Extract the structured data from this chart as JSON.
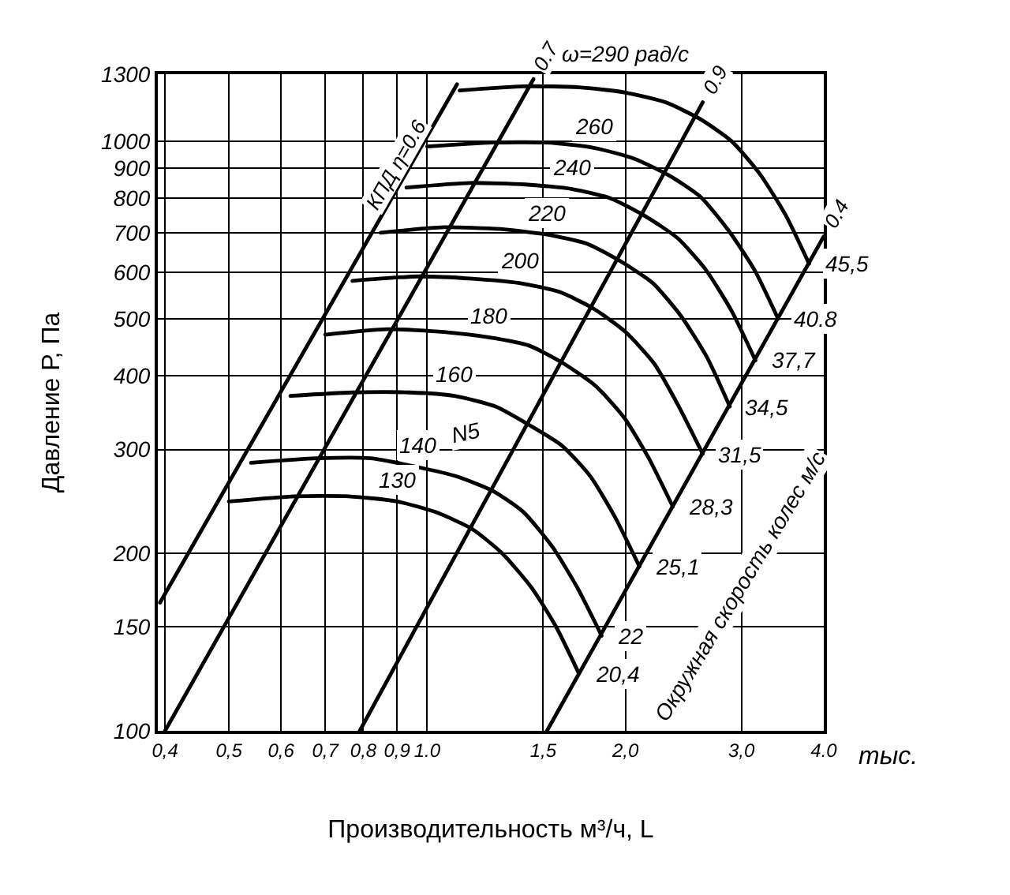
{
  "chart_data": {
    "type": "line",
    "xlabel": "Производительность м³/ч, L",
    "ylabel": "Давление Р, Па",
    "log": "xy",
    "xlim": [
      0.39,
      4.0
    ],
    "ylim": [
      100,
      1300
    ],
    "xticks": [
      {
        "value": 0.4,
        "label": "0,4"
      },
      {
        "value": 0.5,
        "label": "0,5"
      },
      {
        "value": 0.6,
        "label": "0,6"
      },
      {
        "value": 0.7,
        "label": "0,7"
      },
      {
        "value": 0.8,
        "label": "0,8"
      },
      {
        "value": 0.9,
        "label": "0,9"
      },
      {
        "value": 1.0,
        "label": "1.0"
      },
      {
        "value": 1.5,
        "label": "1,5"
      },
      {
        "value": 2.0,
        "label": "2,0"
      },
      {
        "value": 3.0,
        "label": "3,0"
      },
      {
        "value": 4.0,
        "label": "4.0"
      }
    ],
    "yticks": [
      100,
      150,
      200,
      300,
      400,
      500,
      600,
      700,
      800,
      900,
      1000,
      1300
    ],
    "grid": true,
    "legend": false,
    "marker": "none",
    "line_style": "solid",
    "series": [
      {
        "name": "КПД η=0.6",
        "color": "#000000",
        "x": [
          0.393,
          1.11
        ],
        "values": [
          165,
          1250
        ]
      },
      {
        "name": "0.7",
        "color": "#000000",
        "x": [
          0.4,
          1.45
        ],
        "values": [
          100,
          1275
        ]
      },
      {
        "name": "0.9",
        "color": "#000000",
        "x": [
          0.79,
          2.62
        ],
        "values": [
          100,
          1165
        ]
      },
      {
        "name": "0.4",
        "color": "#000000",
        "x": [
          1.52,
          4.0
        ],
        "values": [
          100,
          690
        ]
      },
      {
        "name": "ω=290 рад/с",
        "color": "#000000",
        "x": [
          1.12,
          1.4,
          1.7,
          2.0,
          2.3,
          2.6,
          2.9,
          3.2,
          3.5,
          3.8
        ],
        "values": [
          1220,
          1240,
          1235,
          1210,
          1165,
          1090,
          1000,
          880,
          750,
          620
        ]
      },
      {
        "name": "260",
        "color": "#000000",
        "x": [
          1.0,
          1.25,
          1.52,
          1.79,
          2.06,
          2.33,
          2.6,
          2.87,
          3.14,
          3.41
        ],
        "values": [
          980,
          995,
          995,
          975,
          935,
          875,
          805,
          705,
          605,
          500
        ]
      },
      {
        "name": "240",
        "color": "#000000",
        "x": [
          0.93,
          1.16,
          1.41,
          1.66,
          1.9,
          2.15,
          2.4,
          2.65,
          2.9,
          3.15
        ],
        "values": [
          835,
          850,
          845,
          830,
          800,
          745,
          685,
          605,
          515,
          425
        ]
      },
      {
        "name": "220",
        "color": "#000000",
        "x": [
          0.85,
          1.06,
          1.29,
          1.52,
          1.75,
          1.97,
          2.2,
          2.43,
          2.66,
          2.88
        ],
        "values": [
          700,
          715,
          710,
          695,
          670,
          625,
          575,
          505,
          430,
          355
        ]
      },
      {
        "name": "200",
        "color": "#000000",
        "x": [
          0.77,
          0.97,
          1.17,
          1.38,
          1.59,
          1.79,
          2.0,
          2.21,
          2.41,
          2.62
        ],
        "values": [
          580,
          590,
          585,
          575,
          555,
          520,
          475,
          420,
          355,
          295
        ]
      },
      {
        "name": "180",
        "color": "#000000",
        "x": [
          0.7,
          0.87,
          1.06,
          1.24,
          1.43,
          1.61,
          1.8,
          1.99,
          2.17,
          2.36
        ],
        "values": [
          470,
          480,
          475,
          465,
          450,
          420,
          385,
          340,
          290,
          240
        ]
      },
      {
        "name": "160",
        "color": "#000000",
        "x": [
          0.62,
          0.77,
          0.94,
          1.1,
          1.27,
          1.43,
          1.6,
          1.77,
          1.93,
          2.1
        ],
        "values": [
          370,
          375,
          375,
          370,
          355,
          330,
          305,
          270,
          230,
          190
        ]
      },
      {
        "name": "140",
        "color": "#000000",
        "x": [
          0.54,
          0.68,
          0.82,
          0.97,
          1.11,
          1.26,
          1.4,
          1.55,
          1.69,
          1.84
        ],
        "values": [
          285,
          290,
          290,
          280,
          270,
          255,
          235,
          205,
          175,
          145
        ]
      },
      {
        "name": "130",
        "color": "#000000",
        "x": [
          0.5,
          0.63,
          0.76,
          0.9,
          1.03,
          1.17,
          1.3,
          1.44,
          1.57,
          1.7
        ],
        "values": [
          245,
          250,
          250,
          245,
          235,
          220,
          200,
          175,
          150,
          125
        ]
      }
    ],
    "annotations": [
      "тыс.",
      "Окружная скорость колес м/с",
      "N5",
      {
        "text": "45,5",
        "x": 3.8,
        "y": 620
      },
      {
        "text": "40.8",
        "x": 3.41,
        "y": 500
      },
      {
        "text": "37,7",
        "x": 3.15,
        "y": 425
      },
      {
        "text": "34,5",
        "x": 2.88,
        "y": 355
      },
      {
        "text": "31,5",
        "x": 2.62,
        "y": 295
      },
      {
        "text": "28,3",
        "x": 2.36,
        "y": 240
      },
      {
        "text": "25,1",
        "x": 2.1,
        "y": 190
      },
      {
        "text": "22",
        "x": 1.84,
        "y": 145
      },
      {
        "text": "20,4",
        "x": 1.7,
        "y": 125
      }
    ]
  }
}
